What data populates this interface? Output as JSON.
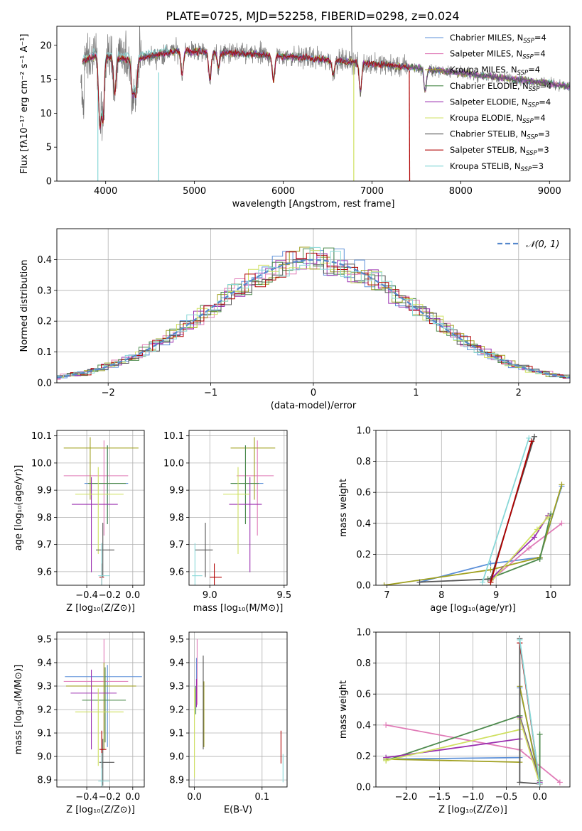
{
  "title": "PLATE=0725, MJD=52258, FIBERID=0298, z=0.024",
  "colors": [
    "#5b8fd8",
    "#e07bb7",
    "#a0a020",
    "#4d8a4d",
    "#9b30b0",
    "#cfe060",
    "#555555",
    "#b00000",
    "#88d8d8"
  ],
  "chart_data": [
    {
      "type": "line",
      "xlabel": "wavelength [Angstrom, rest frame]",
      "ylabel": "Flux [fλ10⁻¹⁷ erg cm⁻² s⁻¹ A⁻¹]",
      "xlim": [
        3450,
        9230
      ],
      "ylim": [
        0,
        22.8
      ],
      "xticks": [
        4000,
        5000,
        6000,
        7000,
        8000,
        9000
      ],
      "yticks": [
        0,
        5,
        10,
        15,
        20
      ],
      "continuum": [
        [
          3720,
          17.5
        ],
        [
          3900,
          18.5
        ],
        [
          4300,
          17.8
        ],
        [
          4800,
          19.2
        ],
        [
          5500,
          18.8
        ],
        [
          6200,
          18.2
        ],
        [
          7000,
          17.3
        ],
        [
          7400,
          16.8
        ],
        [
          8200,
          15.6
        ],
        [
          9000,
          14.4
        ],
        [
          9230,
          13.9
        ]
      ],
      "series_names": [
        "Chabrier MILES, N_SSP=4",
        "Salpeter MILES, N_SSP=4",
        "Kroupa MILES, N_SSP=4",
        "Chabrier ELODIE, N_SSP=4",
        "Salpeter ELODIE, N_SSP=4",
        "Kroupa ELODIE, N_SSP=4",
        "Chabrier STELIB, N_SSP=3",
        "Salpeter STELIB, N_SSP=3",
        "Kroupa STELIB, N_SSP=3"
      ],
      "legend_entries": [
        {
          "name": "Chabrier MILES, N",
          "sub": "SSP",
          "tail": "=4"
        },
        {
          "name": "Salpeter MILES, N",
          "sub": "SSP",
          "tail": "=4"
        },
        {
          "name": "Kroupa MILES, N",
          "sub": "SSP",
          "tail": "=4"
        },
        {
          "name": "Chabrier ELODIE, N",
          "sub": "SSP",
          "tail": "=4"
        },
        {
          "name": "Salpeter ELODIE, N",
          "sub": "SSP",
          "tail": "=4"
        },
        {
          "name": "Kroupa ELODIE, N",
          "sub": "SSP",
          "tail": "=4"
        },
        {
          "name": "Chabrier STELIB, N",
          "sub": "SSP",
          "tail": "=3"
        },
        {
          "name": "Salpeter STELIB, N",
          "sub": "SSP",
          "tail": "=3"
        },
        {
          "name": "Kroupa STELIB, N",
          "sub": "SSP",
          "tail": "=3"
        }
      ],
      "legend_placement": "top-right"
    },
    {
      "type": "histogram",
      "xlabel": "(data-model)/error",
      "ylabel": "Normed distribution",
      "xlim": [
        -2.5,
        2.5
      ],
      "ylim": [
        0,
        0.5
      ],
      "xticks": [
        -2,
        -1,
        0,
        1,
        2
      ],
      "yticks": [
        0.0,
        0.1,
        0.2,
        0.3,
        0.4
      ],
      "grid": true,
      "legend": "𝒩(0, 1)",
      "bin_width": 0.1,
      "reference_curve": "normal pdf, mean 0, sigma 1"
    },
    {
      "type": "errorbar",
      "xlabel": "Z [log₁₀(Z/Z⊙)]",
      "ylabel": "age  [log₁₀(age/yr)]",
      "xlim": [
        -0.66,
        0.1
      ],
      "ylim": [
        9.55,
        10.12
      ],
      "xticks": [
        -0.4,
        -0.2,
        0.0
      ],
      "yticks": [
        9.6,
        9.7,
        9.8,
        9.9,
        10.0,
        10.1
      ],
      "points": [
        {
          "x": -0.22,
          "y": 9.925,
          "xerr": [
            0.2,
            0.18
          ],
          "yerr": [
            0.15,
            0.14
          ]
        },
        {
          "x": -0.25,
          "y": 9.953,
          "xerr": [
            0.35,
            0.21
          ],
          "yerr": [
            0.22,
            0.13
          ]
        },
        {
          "x": -0.37,
          "y": 10.055,
          "xerr": [
            0.23,
            0.42
          ],
          "yerr": [
            0.19,
            0.04
          ]
        },
        {
          "x": -0.22,
          "y": 9.925,
          "xerr": [
            0.17,
            0.16
          ],
          "yerr": [
            0.15,
            0.14
          ]
        },
        {
          "x": -0.36,
          "y": 9.848,
          "xerr": [
            0.17,
            0.23
          ],
          "yerr": [
            0.25,
            0.1
          ]
        },
        {
          "x": -0.3,
          "y": 9.885,
          "xerr": [
            0.2,
            0.22
          ],
          "yerr": [
            0.22,
            0.1
          ]
        },
        {
          "x": -0.26,
          "y": 9.68,
          "xerr": [
            0.06,
            0.1
          ],
          "yerr": [
            0.1,
            0.1
          ]
        },
        {
          "x": -0.27,
          "y": 9.58,
          "xerr": [
            0.02,
            0.02
          ],
          "yerr": [
            0.06,
            0.05
          ]
        },
        {
          "x": -0.27,
          "y": 9.585,
          "xerr": [
            0.03,
            0.07
          ],
          "yerr": [
            0.1,
            0.12
          ]
        }
      ]
    },
    {
      "type": "errorbar",
      "xlabel": "mass [log₁₀(M/M⊙)]",
      "ylabel": "",
      "xlim": [
        8.86,
        9.52
      ],
      "ylim": [
        9.55,
        10.12
      ],
      "xticks": [
        9.0,
        9.5
      ],
      "yticks": [
        9.6,
        9.7,
        9.8,
        9.9,
        10.0,
        10.1
      ],
      "points": [
        {
          "x": 9.24,
          "y": 9.925,
          "xerr": [
            0.1,
            0.12
          ],
          "yerr": [
            0.15,
            0.14
          ]
        },
        {
          "x": 9.32,
          "y": 9.953,
          "xerr": [
            0.14,
            0.11
          ],
          "yerr": [
            0.22,
            0.13
          ]
        },
        {
          "x": 9.3,
          "y": 10.055,
          "xerr": [
            0.16,
            0.14
          ],
          "yerr": [
            0.19,
            0.04
          ]
        },
        {
          "x": 9.24,
          "y": 9.925,
          "xerr": [
            0.1,
            0.09
          ],
          "yerr": [
            0.15,
            0.14
          ]
        },
        {
          "x": 9.27,
          "y": 9.848,
          "xerr": [
            0.14,
            0.08
          ],
          "yerr": [
            0.25,
            0.1
          ]
        },
        {
          "x": 9.19,
          "y": 9.885,
          "xerr": [
            0.1,
            0.08
          ],
          "yerr": [
            0.22,
            0.1
          ]
        },
        {
          "x": 8.97,
          "y": 9.68,
          "xerr": [
            0.07,
            0.05
          ],
          "yerr": [
            0.1,
            0.1
          ]
        },
        {
          "x": 9.03,
          "y": 9.58,
          "xerr": [
            0.03,
            0.05
          ],
          "yerr": [
            0.06,
            0.05
          ]
        },
        {
          "x": 8.9,
          "y": 9.585,
          "xerr": [
            0.02,
            0.05
          ],
          "yerr": [
            0.1,
            0.12
          ]
        }
      ]
    },
    {
      "type": "line",
      "xlabel": "age  [log₁₀(age/yr)]",
      "ylabel": "mass weight",
      "xlim": [
        6.8,
        10.35
      ],
      "ylim": [
        0,
        1.0
      ],
      "xticks": [
        7,
        8,
        9,
        10
      ],
      "yticks": [
        0.0,
        0.2,
        0.4,
        0.6,
        0.8,
        1.0
      ],
      "series": [
        {
          "x": [
            7.6,
            8.9,
            9.8,
            10.2
          ],
          "y": [
            0.02,
            0.14,
            0.18,
            0.64
          ]
        },
        {
          "x": [
            8.9,
            9.6,
            10.2
          ],
          "y": [
            0.03,
            0.24,
            0.4
          ]
        },
        {
          "x": [
            6.95,
            8.9,
            9.8,
            10.2
          ],
          "y": [
            0.0,
            0.1,
            0.18,
            0.65
          ]
        },
        {
          "x": [
            8.85,
            9.8,
            10.0
          ],
          "y": [
            0.04,
            0.17,
            0.46
          ]
        },
        {
          "x": [
            8.9,
            9.7,
            9.95
          ],
          "y": [
            0.04,
            0.31,
            0.45
          ]
        },
        {
          "x": [
            8.9,
            9.75,
            9.95
          ],
          "y": [
            0.02,
            0.36,
            0.44
          ]
        },
        {
          "x": [
            7.6,
            8.9,
            9.7
          ],
          "y": [
            0.02,
            0.04,
            0.96
          ]
        },
        {
          "x": [
            8.9,
            9.65
          ],
          "y": [
            0.02,
            0.93
          ]
        },
        {
          "x": [
            8.75,
            9.6
          ],
          "y": [
            0.02,
            0.95
          ]
        }
      ]
    },
    {
      "type": "errorbar",
      "xlabel": "Z [log₁₀(Z/Z⊙)]",
      "ylabel": "mass [log₁₀(M/M⊙)]",
      "xlim": [
        -0.66,
        0.1
      ],
      "ylim": [
        8.87,
        9.53
      ],
      "xticks": [
        -0.4,
        -0.2,
        0.0
      ],
      "yticks": [
        8.9,
        9.0,
        9.1,
        9.2,
        9.3,
        9.4,
        9.5
      ],
      "points": [
        {
          "x": -0.22,
          "y": 9.34,
          "xerr": [
            0.37,
            0.3
          ],
          "yerr": [
            0.3,
            0.05
          ]
        },
        {
          "x": -0.25,
          "y": 9.32,
          "xerr": [
            0.35,
            0.21
          ],
          "yerr": [
            0.22,
            0.18
          ]
        },
        {
          "x": -0.25,
          "y": 9.3,
          "xerr": [
            0.33,
            0.28
          ],
          "yerr": [
            0.27,
            0.1
          ]
        },
        {
          "x": -0.24,
          "y": 9.24,
          "xerr": [
            0.2,
            0.18
          ],
          "yerr": [
            0.18,
            0.14
          ]
        },
        {
          "x": -0.36,
          "y": 9.27,
          "xerr": [
            0.18,
            0.22
          ],
          "yerr": [
            0.24,
            0.1
          ]
        },
        {
          "x": -0.3,
          "y": 9.19,
          "xerr": [
            0.2,
            0.22
          ],
          "yerr": [
            0.23,
            0.1
          ]
        },
        {
          "x": -0.26,
          "y": 8.975,
          "xerr": [
            0.03,
            0.1
          ],
          "yerr": [
            0.1,
            0.1
          ]
        },
        {
          "x": -0.27,
          "y": 9.03,
          "xerr": [
            0.02,
            0.04
          ],
          "yerr": [
            0.08,
            0.08
          ]
        },
        {
          "x": -0.27,
          "y": 8.895,
          "xerr": [
            0.03,
            0.07
          ],
          "yerr": [
            0.1,
            0.12
          ]
        }
      ]
    },
    {
      "type": "errorbar",
      "xlabel": "E(B-V)",
      "ylabel": "",
      "xlim": [
        -0.008,
        0.137
      ],
      "ylim": [
        8.87,
        9.53
      ],
      "xticks": [
        0.0,
        0.1
      ],
      "yticks": [
        8.9,
        9.0,
        9.1,
        9.2,
        9.3,
        9.4,
        9.5
      ],
      "points": [
        {
          "x": 0.003,
          "y": 9.34,
          "xerr": [
            0,
            0
          ],
          "yerr": [
            0.08,
            0.08
          ]
        },
        {
          "x": 0.004,
          "y": 9.32,
          "xerr": [
            0,
            0
          ],
          "yerr": [
            0.1,
            0.18
          ]
        },
        {
          "x": 0.014,
          "y": 9.22,
          "xerr": [
            0,
            0
          ],
          "yerr": [
            0.18,
            0.1
          ]
        },
        {
          "x": 0.002,
          "y": 9.24,
          "xerr": [
            0,
            0
          ],
          "yerr": [
            0.06,
            0.06
          ]
        },
        {
          "x": 0.003,
          "y": 9.27,
          "xerr": [
            0,
            0
          ],
          "yerr": [
            0.06,
            0.06
          ]
        },
        {
          "x": 0.0,
          "y": 9.19,
          "xerr": [
            0,
            0
          ],
          "yerr": [
            0.28,
            0.1
          ]
        },
        {
          "x": 0.013,
          "y": 9.23,
          "xerr": [
            0,
            0
          ],
          "yerr": [
            0.2,
            0.2
          ]
        },
        {
          "x": 0.128,
          "y": 9.03,
          "xerr": [
            0,
            0
          ],
          "yerr": [
            0.06,
            0.08
          ]
        },
        {
          "x": 0.131,
          "y": 8.95,
          "xerr": [
            0,
            0
          ],
          "yerr": [
            0.06,
            0.06
          ]
        }
      ]
    },
    {
      "type": "line",
      "xlabel": "Z [log₁₀(Z/Z⊙)]",
      "ylabel": "mass weight",
      "xlim": [
        -2.45,
        0.45
      ],
      "ylim": [
        0,
        1.0
      ],
      "xticks": [
        -2.0,
        -1.5,
        -1.0,
        -0.5,
        0.0
      ],
      "yticks": [
        0.0,
        0.2,
        0.4,
        0.6,
        0.8,
        1.0
      ],
      "series": [
        {
          "x": [
            -2.3,
            -0.3,
            -0.3,
            0.0
          ],
          "y": [
            0.18,
            0.19,
            0.64,
            0.04
          ]
        },
        {
          "x": [
            -2.3,
            -0.3,
            0.3
          ],
          "y": [
            0.4,
            0.24,
            0.03
          ]
        },
        {
          "x": [
            -2.3,
            -0.3,
            -0.3,
            0.0
          ],
          "y": [
            0.18,
            0.16,
            0.65,
            0.02
          ]
        },
        {
          "x": [
            -2.3,
            -0.3,
            0.0,
            0.0
          ],
          "y": [
            0.17,
            0.46,
            0.04,
            0.34
          ]
        },
        {
          "x": [
            -2.3,
            -0.3,
            -0.3,
            0.0
          ],
          "y": [
            0.19,
            0.31,
            0.45,
            0.03
          ]
        },
        {
          "x": [
            -2.3,
            -0.3,
            -0.3,
            0.0
          ],
          "y": [
            0.17,
            0.37,
            0.44,
            0.02
          ]
        },
        {
          "x": [
            -0.3,
            -0.3,
            0.0
          ],
          "y": [
            0.96,
            0.03,
            0.02
          ]
        },
        {
          "x": [
            -0.3,
            0.0
          ],
          "y": [
            0.93,
            0.02
          ]
        },
        {
          "x": [
            -0.3,
            0.0
          ],
          "y": [
            0.95,
            0.02
          ]
        }
      ]
    }
  ]
}
